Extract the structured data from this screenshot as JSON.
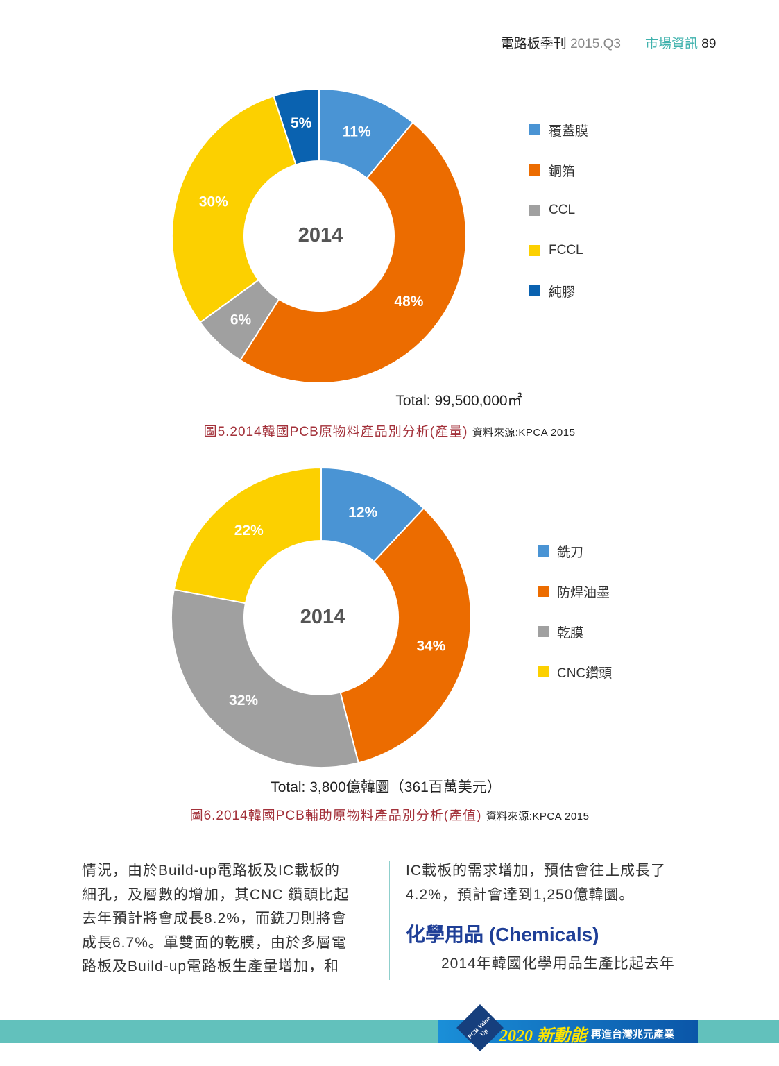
{
  "header": {
    "magazine": "電路板季刊",
    "issue": "2015.Q3",
    "section": "市場資訊",
    "page": "89"
  },
  "chart_data": [
    {
      "type": "pie",
      "donut": true,
      "center_label": "2014",
      "categories": [
        "覆蓋膜",
        "銅箔",
        "CCL",
        "FCCL",
        "純膠"
      ],
      "values": [
        11,
        48,
        6,
        30,
        5
      ],
      "labels": [
        "11%",
        "48%",
        "6%",
        "30%",
        "5%"
      ],
      "colors": [
        "#4a94d4",
        "#ec6c00",
        "#a0a0a0",
        "#fcd000",
        "#0a62b0"
      ],
      "total": "Total: 99,500,000㎡",
      "caption": "圖5.2014韓國PCB原物料產品別分析(產量)",
      "source": "資料來源:KPCA 2015",
      "legend": "right"
    },
    {
      "type": "pie",
      "donut": true,
      "center_label": "2014",
      "categories": [
        "銑刀",
        "防焊油墨",
        "乾膜",
        "CNC鑽頭"
      ],
      "values": [
        12,
        34,
        32,
        22
      ],
      "labels": [
        "12%",
        "34%",
        "32%",
        "22%"
      ],
      "colors": [
        "#4a94d4",
        "#ec6c00",
        "#a0a0a0",
        "#fcd000"
      ],
      "total": "Total: 3,800億韓圜（361百萬美元）",
      "caption": "圖6.2014韓國PCB輔助原物料產品別分析(產值)",
      "source": "資料來源:KPCA 2015",
      "legend": "right"
    }
  ],
  "body": {
    "left": [
      "情況，由於Build-up電路板及IC載板的",
      "細孔，及層數的增加，其CNC 鑽頭比起",
      "去年預計將會成長8.2%，而銑刀則將會",
      "成長6.7%。單雙面的乾膜，由於多層電",
      "路板及Build-up電路板生產量增加，和"
    ],
    "right": [
      "IC載板的需求增加，預估會往上成長了",
      "4.2%，預計會達到1,250億韓圜。"
    ],
    "heading": "化學用品 (Chemicals)",
    "right2": "2014年韓國化學用品生產比起去年"
  },
  "footer": {
    "badge": "PCB Value Up",
    "title": "2020 新動能",
    "subtitle": "再造台灣兆元產業"
  }
}
